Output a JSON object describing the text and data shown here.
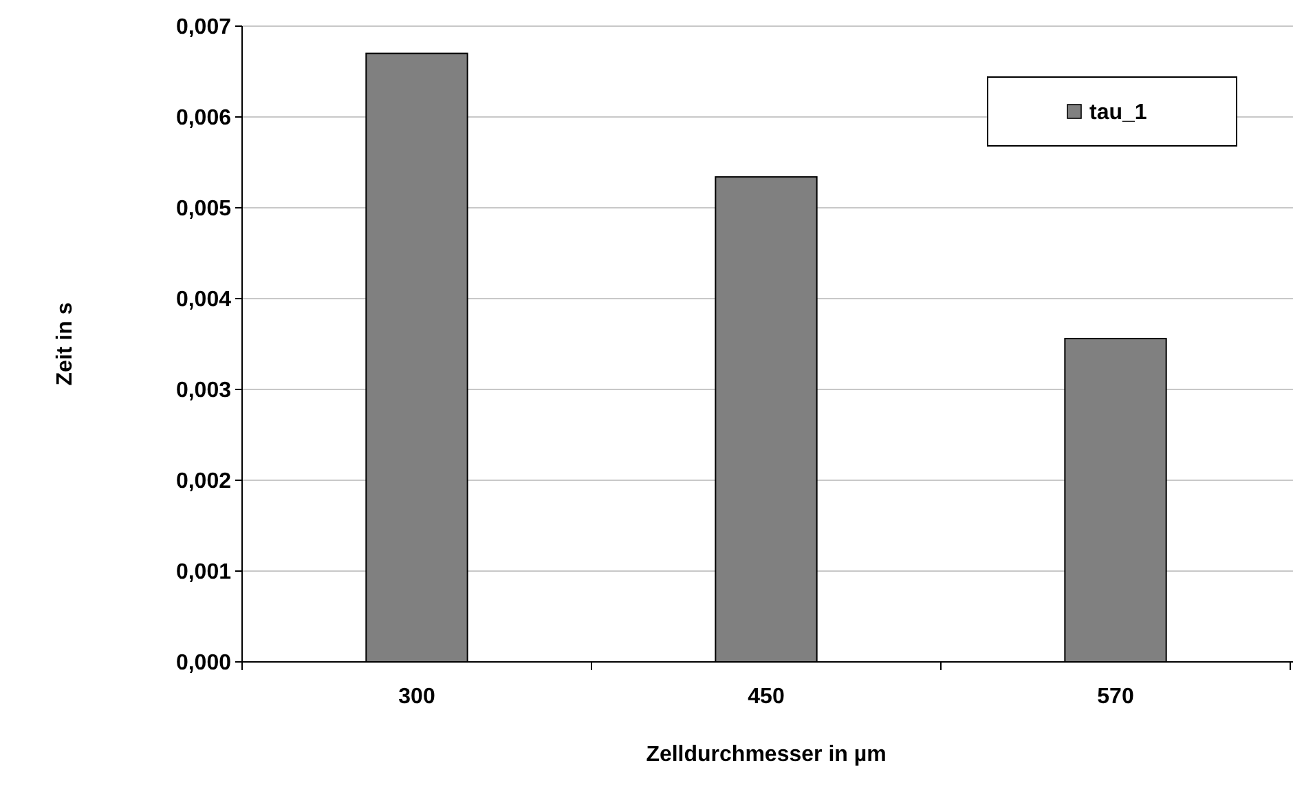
{
  "chart_data": {
    "type": "bar",
    "xlabel": "Zelldurchmesser in µm",
    "ylabel": "Zeit in s",
    "categories": [
      "300",
      "450",
      "570"
    ],
    "series": [
      {
        "name": "tau_1",
        "color": "#808080",
        "values": [
          0.0067,
          0.00534,
          0.00356
        ]
      }
    ],
    "ylim": [
      0,
      0.007
    ],
    "yticks": [
      {
        "value": 0,
        "label": "0,000"
      },
      {
        "value": 0.001,
        "label": "0,001"
      },
      {
        "value": 0.002,
        "label": "0,002"
      },
      {
        "value": 0.003,
        "label": "0,003"
      },
      {
        "value": 0.004,
        "label": "0,004"
      },
      {
        "value": 0.005,
        "label": "0,005"
      },
      {
        "value": 0.006,
        "label": "0,006"
      },
      {
        "value": 0.007,
        "label": "0,007"
      }
    ],
    "grid": "y",
    "legend": "top right"
  }
}
